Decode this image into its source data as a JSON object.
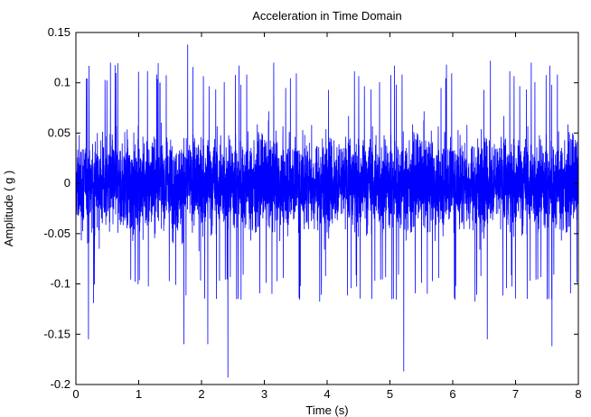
{
  "chart_data": {
    "type": "line",
    "title": "Acceleration in Time Domain",
    "xlabel": "Time (s)",
    "ylabel": "Amplitude ( g )",
    "xlim": [
      0,
      8
    ],
    "ylim": [
      -0.2,
      0.15
    ],
    "x_ticks": [
      "0",
      "1",
      "2",
      "3",
      "4",
      "5",
      "6",
      "7",
      "8"
    ],
    "y_ticks": [
      "-0.2",
      "-0.15",
      "-0.1",
      "-0.05",
      "0",
      "0.05",
      "0.1",
      "0.15"
    ],
    "grid": false,
    "legend": "none",
    "line_color": "#0000ff",
    "series": [
      {
        "description": "dense vibration signal, values between about -0.19 and 0.14 g",
        "typical_envelope": [
          -0.09,
          0.09
        ],
        "peaks": [
          {
            "x": 1.78,
            "y": 0.138
          },
          {
            "x": 5.22,
            "y": 0.143
          },
          {
            "x": 0.55,
            "y": 0.12
          },
          {
            "x": 3.15,
            "y": 0.12
          },
          {
            "x": 6.6,
            "y": 0.122
          },
          {
            "x": 7.25,
            "y": 0.12
          },
          {
            "x": 5.9,
            "y": 0.118
          }
        ],
        "troughs": [
          {
            "x": 2.42,
            "y": -0.193
          },
          {
            "x": 5.22,
            "y": -0.187
          },
          {
            "x": 1.72,
            "y": -0.16
          },
          {
            "x": 2.1,
            "y": -0.16
          },
          {
            "x": 7.58,
            "y": -0.162
          },
          {
            "x": 0.2,
            "y": -0.155
          },
          {
            "x": 6.55,
            "y": -0.155
          }
        ]
      }
    ]
  }
}
